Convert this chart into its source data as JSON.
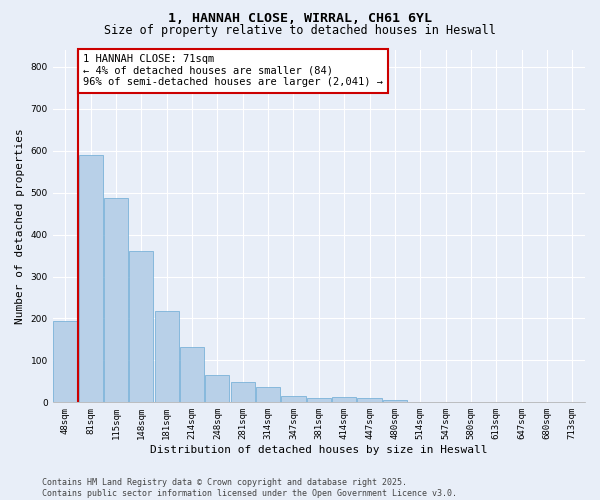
{
  "title": "1, HANNAH CLOSE, WIRRAL, CH61 6YL",
  "subtitle": "Size of property relative to detached houses in Heswall",
  "xlabel": "Distribution of detached houses by size in Heswall",
  "ylabel": "Number of detached properties",
  "categories": [
    "48sqm",
    "81sqm",
    "115sqm",
    "148sqm",
    "181sqm",
    "214sqm",
    "248sqm",
    "281sqm",
    "314sqm",
    "347sqm",
    "381sqm",
    "414sqm",
    "447sqm",
    "480sqm",
    "514sqm",
    "547sqm",
    "580sqm",
    "613sqm",
    "647sqm",
    "680sqm",
    "713sqm"
  ],
  "values": [
    195,
    590,
    487,
    360,
    218,
    133,
    65,
    48,
    36,
    16,
    10,
    12,
    10,
    5,
    0,
    0,
    0,
    0,
    0,
    0,
    0
  ],
  "bar_color": "#b8d0e8",
  "bar_edge_color": "#6aaad4",
  "marker_line_color": "#cc0000",
  "annotation_text": "1 HANNAH CLOSE: 71sqm\n← 4% of detached houses are smaller (84)\n96% of semi-detached houses are larger (2,041) →",
  "annotation_box_color": "#ffffff",
  "annotation_box_edge_color": "#cc0000",
  "ylim": [
    0,
    840
  ],
  "yticks": [
    0,
    100,
    200,
    300,
    400,
    500,
    600,
    700,
    800
  ],
  "bg_color": "#e8eef8",
  "plot_bg_color": "#e8eef8",
  "footer": "Contains HM Land Registry data © Crown copyright and database right 2025.\nContains public sector information licensed under the Open Government Licence v3.0.",
  "title_fontsize": 9.5,
  "subtitle_fontsize": 8.5,
  "axis_label_fontsize": 8,
  "tick_fontsize": 6.5,
  "annotation_fontsize": 7.5,
  "footer_fontsize": 6
}
